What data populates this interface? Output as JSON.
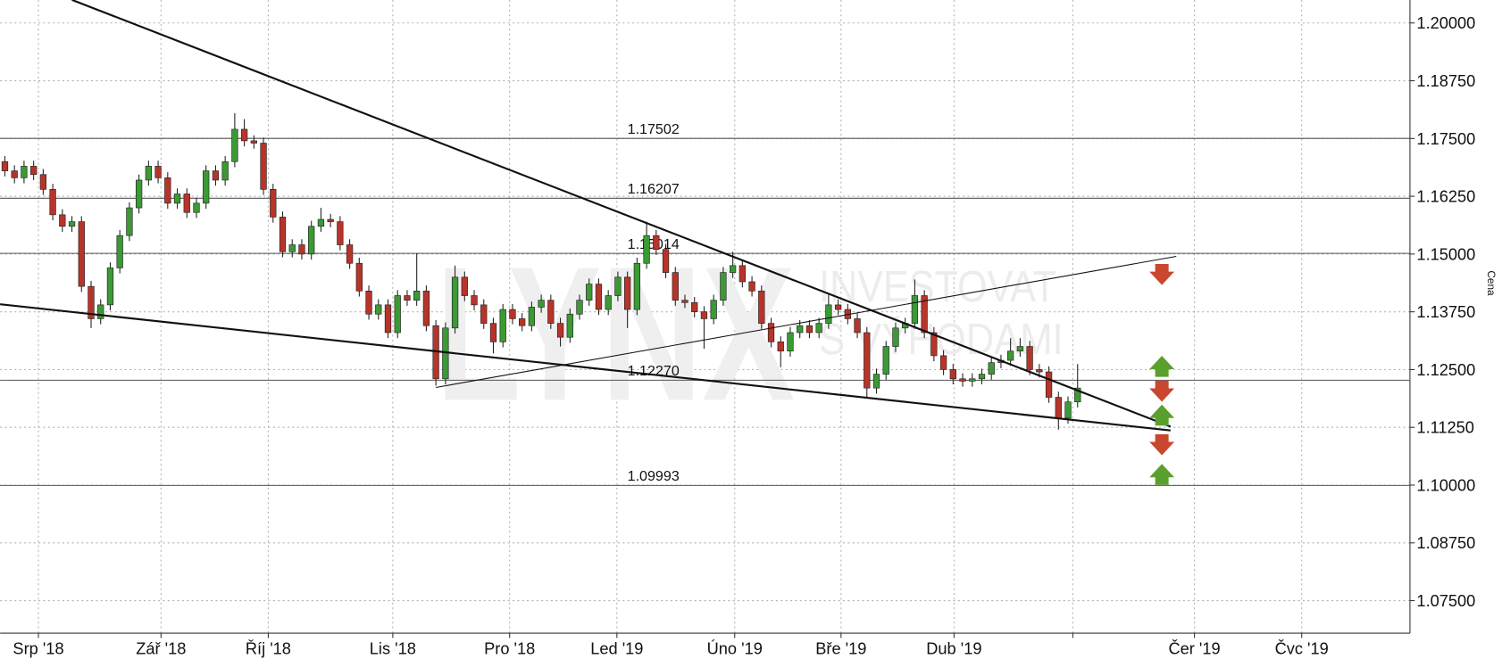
{
  "chart_data": {
    "type": "candlestick",
    "watermark": [
      "LYNX",
      "INVESTOVAT",
      "S VÝHODAMI"
    ],
    "y_axis_label": "Cena",
    "xlim": [
      -0.5,
      146.7
    ],
    "ylim": [
      1.06796,
      1.20497
    ],
    "grid": true,
    "up_color": "#3b9a34",
    "down_color": "#b8342a",
    "xticks": [
      {
        "value": 3.5,
        "label": "Srp '18"
      },
      {
        "value": 16.3,
        "label": "Zář '18"
      },
      {
        "value": 27.5,
        "label": "Říj '18"
      },
      {
        "value": 40.5,
        "label": "Lis '18"
      },
      {
        "value": 52.7,
        "label": "Pro '18"
      },
      {
        "value": 63.9,
        "label": "Led '19"
      },
      {
        "value": 76.2,
        "label": "Úno '19"
      },
      {
        "value": 87.3,
        "label": "Bře '19"
      },
      {
        "value": 99.1,
        "label": "Dub '19"
      },
      {
        "value": 111.5,
        "label": null
      },
      {
        "value": 124.2,
        "label": "Čer '19"
      },
      {
        "value": 135.4,
        "label": "Čvc '19"
      }
    ],
    "yticks": [
      {
        "value": 1.2,
        "label": "1.20000"
      },
      {
        "value": 1.1875,
        "label": "1.18750"
      },
      {
        "value": 1.175,
        "label": "1.17500"
      },
      {
        "value": 1.1625,
        "label": "1.16250"
      },
      {
        "value": 1.15,
        "label": "1.15000"
      },
      {
        "value": 1.1375,
        "label": "1.13750"
      },
      {
        "value": 1.125,
        "label": "1.12500"
      },
      {
        "value": 1.1125,
        "label": "1.11250"
      },
      {
        "value": 1.1,
        "label": "1.10000"
      },
      {
        "value": 1.0875,
        "label": "1.08750"
      },
      {
        "value": 1.075,
        "label": "1.07500"
      }
    ],
    "levels": [
      {
        "value": 1.17502,
        "label": "1.17502"
      },
      {
        "value": 1.16207,
        "label": "1.16207"
      },
      {
        "value": 1.15014,
        "label": "1.15014"
      },
      {
        "value": 1.1227,
        "label": "1.12270"
      },
      {
        "value": 1.09993,
        "label": "1.09993"
      }
    ],
    "trendlines": [
      {
        "x": [
          7.0,
          121.7
        ],
        "y": [
          1.205,
          1.11267
        ],
        "width": 2
      },
      {
        "x": [
          -0.5,
          121.7
        ],
        "y": [
          1.13914,
          1.11182
        ],
        "width": 2
      },
      {
        "x": [
          45,
          122.3
        ],
        "y": [
          1.12113,
          1.14949
        ],
        "width": 1
      }
    ],
    "candles": [
      [
        1.17,
        1.1712,
        1.1668,
        1.168
      ],
      [
        1.168,
        1.1692,
        1.1653,
        1.1665
      ],
      [
        1.1665,
        1.1702,
        1.1653,
        1.169
      ],
      [
        1.169,
        1.1702,
        1.166,
        1.1672
      ],
      [
        1.1672,
        1.1684,
        1.1628,
        1.164
      ],
      [
        1.164,
        1.1652,
        1.1573,
        1.1585
      ],
      [
        1.1585,
        1.1597,
        1.1548,
        1.156
      ],
      [
        1.156,
        1.1582,
        1.1548,
        1.157
      ],
      [
        1.157,
        1.1582,
        1.1418,
        1.143
      ],
      [
        1.143,
        1.1442,
        1.134,
        1.136
      ],
      [
        1.136,
        1.1402,
        1.1348,
        1.139
      ],
      [
        1.139,
        1.1482,
        1.1378,
        1.147
      ],
      [
        1.147,
        1.1552,
        1.1458,
        1.154
      ],
      [
        1.154,
        1.1612,
        1.1528,
        1.16
      ],
      [
        1.16,
        1.1672,
        1.1588,
        1.166
      ],
      [
        1.166,
        1.1702,
        1.1648,
        1.169
      ],
      [
        1.169,
        1.1702,
        1.1653,
        1.1665
      ],
      [
        1.1665,
        1.1677,
        1.1598,
        1.161
      ],
      [
        1.161,
        1.1642,
        1.1598,
        1.163
      ],
      [
        1.163,
        1.1642,
        1.1578,
        1.159
      ],
      [
        1.159,
        1.1622,
        1.1578,
        1.161
      ],
      [
        1.161,
        1.1692,
        1.1598,
        1.168
      ],
      [
        1.168,
        1.1692,
        1.1648,
        1.166
      ],
      [
        1.166,
        1.1712,
        1.1648,
        1.17
      ],
      [
        1.17,
        1.1805,
        1.1688,
        1.177
      ],
      [
        1.177,
        1.1792,
        1.1733,
        1.1745
      ],
      [
        1.1745,
        1.1757,
        1.1728,
        1.174
      ],
      [
        1.174,
        1.1752,
        1.1628,
        1.164
      ],
      [
        1.164,
        1.1652,
        1.1568,
        1.158
      ],
      [
        1.158,
        1.1592,
        1.1493,
        1.1505
      ],
      [
        1.1505,
        1.1532,
        1.1493,
        1.152
      ],
      [
        1.152,
        1.1532,
        1.1488,
        1.15
      ],
      [
        1.15,
        1.1572,
        1.1488,
        1.156
      ],
      [
        1.156,
        1.16,
        1.1548,
        1.1575
      ],
      [
        1.1575,
        1.1587,
        1.1558,
        1.157
      ],
      [
        1.157,
        1.1582,
        1.1508,
        1.152
      ],
      [
        1.152,
        1.1532,
        1.1468,
        1.148
      ],
      [
        1.148,
        1.1492,
        1.1408,
        1.142
      ],
      [
        1.142,
        1.1432,
        1.1358,
        1.137
      ],
      [
        1.137,
        1.1402,
        1.1358,
        1.139
      ],
      [
        1.139,
        1.1402,
        1.1318,
        1.133
      ],
      [
        1.133,
        1.1422,
        1.1318,
        1.141
      ],
      [
        1.141,
        1.1422,
        1.1388,
        1.14
      ],
      [
        1.14,
        1.1502,
        1.1388,
        1.142
      ],
      [
        1.142,
        1.1432,
        1.1333,
        1.1345
      ],
      [
        1.1345,
        1.1357,
        1.1215,
        1.123
      ],
      [
        1.123,
        1.1352,
        1.1218,
        1.134
      ],
      [
        1.134,
        1.1475,
        1.1328,
        1.145
      ],
      [
        1.145,
        1.1462,
        1.1398,
        1.141
      ],
      [
        1.141,
        1.1422,
        1.1378,
        1.139
      ],
      [
        1.139,
        1.1402,
        1.1338,
        1.135
      ],
      [
        1.135,
        1.1362,
        1.1285,
        1.131
      ],
      [
        1.131,
        1.1392,
        1.1298,
        1.138
      ],
      [
        1.138,
        1.1392,
        1.1348,
        1.136
      ],
      [
        1.136,
        1.1372,
        1.1333,
        1.1345
      ],
      [
        1.1345,
        1.1397,
        1.1333,
        1.1385
      ],
      [
        1.1385,
        1.1412,
        1.1373,
        1.14
      ],
      [
        1.14,
        1.1412,
        1.1338,
        1.135
      ],
      [
        1.135,
        1.1362,
        1.13,
        1.132
      ],
      [
        1.132,
        1.1382,
        1.1308,
        1.137
      ],
      [
        1.137,
        1.1412,
        1.1358,
        1.14
      ],
      [
        1.14,
        1.1447,
        1.1388,
        1.1435
      ],
      [
        1.1435,
        1.1447,
        1.1368,
        1.138
      ],
      [
        1.138,
        1.1422,
        1.1368,
        1.141
      ],
      [
        1.141,
        1.1462,
        1.1398,
        1.145
      ],
      [
        1.145,
        1.1462,
        1.134,
        1.138
      ],
      [
        1.138,
        1.1492,
        1.1368,
        1.148
      ],
      [
        1.148,
        1.157,
        1.1468,
        1.154
      ],
      [
        1.154,
        1.1552,
        1.1498,
        1.151
      ],
      [
        1.151,
        1.1522,
        1.1448,
        1.146
      ],
      [
        1.146,
        1.1472,
        1.1388,
        1.14
      ],
      [
        1.14,
        1.1412,
        1.1383,
        1.1395
      ],
      [
        1.1395,
        1.1407,
        1.1363,
        1.1375
      ],
      [
        1.1375,
        1.1387,
        1.1295,
        1.136
      ],
      [
        1.136,
        1.1412,
        1.1348,
        1.14
      ],
      [
        1.14,
        1.1472,
        1.1388,
        1.146
      ],
      [
        1.146,
        1.1505,
        1.1448,
        1.1475
      ],
      [
        1.1475,
        1.1487,
        1.1428,
        1.144
      ],
      [
        1.144,
        1.1452,
        1.1408,
        1.142
      ],
      [
        1.142,
        1.1432,
        1.1338,
        1.135
      ],
      [
        1.135,
        1.1362,
        1.1298,
        1.131
      ],
      [
        1.131,
        1.1322,
        1.1255,
        1.129
      ],
      [
        1.129,
        1.1342,
        1.1278,
        1.133
      ],
      [
        1.133,
        1.1357,
        1.1318,
        1.1345
      ],
      [
        1.1345,
        1.1357,
        1.1318,
        1.133
      ],
      [
        1.133,
        1.1362,
        1.1318,
        1.135
      ],
      [
        1.135,
        1.1412,
        1.1338,
        1.139
      ],
      [
        1.139,
        1.1402,
        1.1368,
        1.138
      ],
      [
        1.138,
        1.1392,
        1.1348,
        1.136
      ],
      [
        1.136,
        1.1372,
        1.1318,
        1.133
      ],
      [
        1.133,
        1.1342,
        1.119,
        1.121
      ],
      [
        1.121,
        1.1252,
        1.1198,
        1.124
      ],
      [
        1.124,
        1.1312,
        1.1228,
        1.13
      ],
      [
        1.13,
        1.1352,
        1.1288,
        1.134
      ],
      [
        1.134,
        1.1362,
        1.1328,
        1.135
      ],
      [
        1.135,
        1.1445,
        1.1338,
        1.141
      ],
      [
        1.141,
        1.1422,
        1.1318,
        1.133
      ],
      [
        1.133,
        1.1342,
        1.1268,
        1.128
      ],
      [
        1.128,
        1.1292,
        1.1238,
        1.125
      ],
      [
        1.125,
        1.1262,
        1.1218,
        1.123
      ],
      [
        1.123,
        1.1242,
        1.1213,
        1.1225
      ],
      [
        1.1225,
        1.1242,
        1.1213,
        1.123
      ],
      [
        1.123,
        1.1252,
        1.1218,
        1.124
      ],
      [
        1.124,
        1.1277,
        1.1228,
        1.1265
      ],
      [
        1.1265,
        1.1282,
        1.1253,
        1.127
      ],
      [
        1.127,
        1.1318,
        1.1258,
        1.129
      ],
      [
        1.129,
        1.1318,
        1.1278,
        1.13
      ],
      [
        1.13,
        1.1312,
        1.1238,
        1.125
      ],
      [
        1.125,
        1.1262,
        1.1233,
        1.1245
      ],
      [
        1.1245,
        1.1257,
        1.1178,
        1.119
      ],
      [
        1.119,
        1.1202,
        1.112,
        1.1145
      ],
      [
        1.1145,
        1.1192,
        1.1133,
        1.118
      ],
      [
        1.118,
        1.1262,
        1.1168,
        1.121
      ]
    ]
  }
}
